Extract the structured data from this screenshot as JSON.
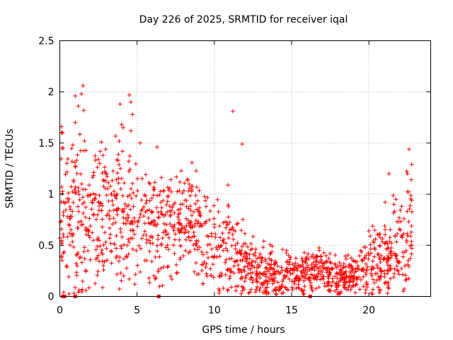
{
  "chart_data": {
    "type": "scatter",
    "title": "Day 226 of 2025, SRMTID for receiver iqal",
    "xlabel": "GPS time / hours",
    "ylabel": "SRMTID / TECUs",
    "xlim": [
      0,
      24
    ],
    "ylim": [
      0,
      2.5
    ],
    "x_ticks": [
      0,
      5,
      10,
      15,
      20
    ],
    "x_tick_labels": [
      "0",
      "5",
      "10",
      "15",
      "20"
    ],
    "y_ticks": [
      0,
      0.5,
      1,
      1.5,
      2,
      2.5
    ],
    "y_tick_labels": [
      "0",
      "0.5",
      "1",
      "1.5",
      "2",
      "2.5"
    ],
    "grid": true,
    "marker": "plus",
    "color": "#ff0000",
    "series": [
      {
        "name": "SRMTID",
        "envelope": {
          "hours": [
            0,
            1,
            2,
            3,
            4,
            5,
            6,
            7,
            8,
            9,
            10,
            11,
            12,
            13,
            14,
            15,
            16,
            17,
            18,
            19,
            20,
            21,
            22,
            22.8
          ],
          "median": [
            0.85,
            0.8,
            0.8,
            0.85,
            0.8,
            0.72,
            0.7,
            0.7,
            0.75,
            0.65,
            0.4,
            0.5,
            0.3,
            0.25,
            0.22,
            0.2,
            0.22,
            0.25,
            0.2,
            0.22,
            0.3,
            0.4,
            0.5,
            0.6
          ],
          "spread": [
            0.35,
            0.45,
            0.35,
            0.35,
            0.35,
            0.3,
            0.28,
            0.28,
            0.25,
            0.25,
            0.25,
            0.25,
            0.15,
            0.12,
            0.12,
            0.1,
            0.12,
            0.12,
            0.1,
            0.1,
            0.15,
            0.2,
            0.25,
            0.3
          ]
        },
        "high_points": [
          [
            0.1,
            1.66
          ],
          [
            0.12,
            1.6
          ],
          [
            0.15,
            1.45
          ],
          [
            1.0,
            1.96
          ],
          [
            1.2,
            1.86
          ],
          [
            1.4,
            1.98
          ],
          [
            1.5,
            2.06
          ],
          [
            1.55,
            1.82
          ],
          [
            1.6,
            1.52
          ],
          [
            1.0,
            1.7
          ],
          [
            3.9,
            1.88
          ],
          [
            4.0,
            1.68
          ],
          [
            4.1,
            1.65
          ],
          [
            4.5,
            1.97
          ],
          [
            4.6,
            1.9
          ],
          [
            4.6,
            1.62
          ],
          [
            4.7,
            1.78
          ],
          [
            5.2,
            1.5
          ],
          [
            6.3,
            1.46
          ],
          [
            11.2,
            1.81
          ],
          [
            11.8,
            1.49
          ],
          [
            22.6,
            1.44
          ],
          [
            22.5,
            1.2
          ],
          [
            21.3,
            1.2
          ]
        ],
        "zero_points": [
          0.2,
          0.3,
          1.0,
          6.4,
          16.2
        ]
      }
    ]
  }
}
